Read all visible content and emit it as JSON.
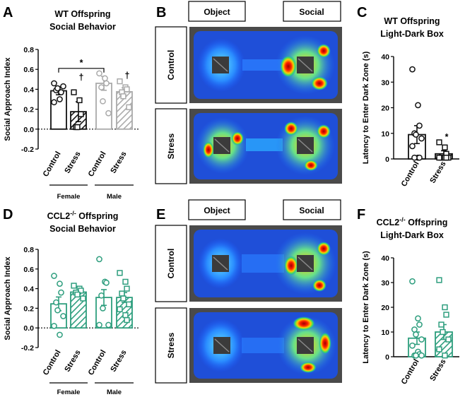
{
  "figure": {
    "panel_labels": {
      "a": "A",
      "b": "B",
      "c": "C",
      "d": "D",
      "e": "E",
      "f": "F"
    }
  },
  "heatmaps": {
    "top": {
      "left_label": "Object",
      "right_label": "Social",
      "row_labels": [
        "Control",
        "Stress"
      ]
    },
    "bottom": {
      "left_label": "Object",
      "right_label": "Social",
      "row_labels": [
        "Control",
        "Stress"
      ]
    }
  },
  "colors": {
    "wt_dark": "#111111",
    "wt_light": "#aaaaaa",
    "ko": "#2e9e7e",
    "axis": "#000000"
  },
  "chart_data": [
    {
      "id": "A",
      "type": "bar",
      "title": "WT Offspring",
      "subtitle": "Social Behavior",
      "title_sup": "",
      "ylabel": "Social Approach Index",
      "ylim": [
        -0.2,
        0.8
      ],
      "yticks": [
        -0.2,
        0.0,
        0.2,
        0.4,
        0.6,
        0.8
      ],
      "ytick_labels": [
        "-0.2",
        "0.0",
        "0.2",
        "0.4",
        "0.6",
        "0.8"
      ],
      "zero_dotted": true,
      "categories": [
        "Control",
        "Stress",
        "Control",
        "Stress"
      ],
      "groups": [
        {
          "label": "Female",
          "span": [
            0,
            1
          ]
        },
        {
          "label": "Male",
          "span": [
            2,
            3
          ]
        }
      ],
      "bars": [
        {
          "value": 0.385,
          "sem": 0.04,
          "hatched": false,
          "color_key": "wt_dark",
          "marker": "circle",
          "points": [
            0.27,
            0.3,
            0.37,
            0.39,
            0.41,
            0.43,
            0.46
          ]
        },
        {
          "value": 0.175,
          "sem": 0.1,
          "hatched": true,
          "color_key": "wt_dark",
          "marker": "square",
          "points": [
            0.37,
            0.29,
            0.15,
            0.02,
            0.02
          ]
        },
        {
          "value": 0.46,
          "sem": 0.07,
          "hatched": false,
          "color_key": "wt_light",
          "marker": "circle",
          "points": [
            0.56,
            0.51,
            0.46,
            0.42,
            0.28,
            0.16
          ]
        },
        {
          "value": 0.375,
          "sem": 0.04,
          "hatched": true,
          "color_key": "wt_light",
          "marker": "square",
          "points": [
            0.48,
            0.42,
            0.4,
            0.37,
            0.33,
            0.22
          ]
        }
      ],
      "annotations": [
        {
          "text": "*",
          "type": "bracket",
          "from": 0,
          "to": 2,
          "y": 0.61
        },
        {
          "text": "†",
          "type": "mark",
          "bar": 1,
          "y": 0.49
        },
        {
          "text": "†",
          "type": "mark",
          "bar": 3,
          "y": 0.51
        }
      ]
    },
    {
      "id": "C",
      "type": "bar",
      "title": "WT Offspring",
      "subtitle": "Light-Dark Box",
      "title_sup": "",
      "ylabel": "Latency to Enter Dark Zone (s)",
      "ylim": [
        0,
        40
      ],
      "yticks": [
        0,
        10,
        20,
        30,
        40
      ],
      "ytick_labels": [
        "0",
        "10",
        "20",
        "30",
        "40"
      ],
      "zero_dotted": false,
      "categories": [
        "Control",
        "Stress"
      ],
      "groups": [],
      "bars": [
        {
          "value": 9.5,
          "sem": 3.5,
          "hatched": false,
          "color_key": "wt_dark",
          "marker": "circle",
          "points": [
            35.0,
            21.0,
            13.0,
            10.0,
            9.5,
            8.0,
            5.0,
            0.5,
            0.5,
            0.5
          ]
        },
        {
          "value": 2.0,
          "sem": 1.2,
          "hatched": true,
          "color_key": "wt_dark",
          "marker": "square",
          "points": [
            6.5,
            4.5,
            2.0,
            0.5,
            0.5,
            0.5,
            0.5,
            0.5,
            0.5
          ]
        }
      ],
      "annotations": [
        {
          "text": "*",
          "type": "mark",
          "bar": 1,
          "y": 7.5
        }
      ]
    },
    {
      "id": "D",
      "type": "bar",
      "title": "CCL2",
      "subtitle": "Social Behavior",
      "title_sup": "-/-",
      "title_suffix": " Offspring",
      "ylabel": "Social Approach Index",
      "ylim": [
        -0.2,
        0.8
      ],
      "yticks": [
        -0.2,
        0.0,
        0.2,
        0.4,
        0.6,
        0.8
      ],
      "ytick_labels": [
        "-0.2",
        "0.0",
        "0.2",
        "0.4",
        "0.6",
        "0.8"
      ],
      "zero_dotted": true,
      "categories": [
        "Control",
        "Stress",
        "Control",
        "Stress"
      ],
      "groups": [
        {
          "label": "Female",
          "span": [
            0,
            1
          ]
        },
        {
          "label": "Male",
          "span": [
            2,
            3
          ]
        }
      ],
      "bars": [
        {
          "value": 0.245,
          "sem": 0.07,
          "hatched": false,
          "color_key": "ko",
          "marker": "circle",
          "points": [
            0.53,
            0.45,
            0.36,
            0.26,
            0.18,
            0.12,
            0.02,
            -0.07
          ]
        },
        {
          "value": 0.365,
          "sem": 0.02,
          "hatched": true,
          "color_key": "ko",
          "marker": "square",
          "points": [
            0.43,
            0.4,
            0.38,
            0.36,
            0.34,
            0.3
          ]
        },
        {
          "value": 0.31,
          "sem": 0.08,
          "hatched": false,
          "color_key": "ko",
          "marker": "circle",
          "points": [
            0.7,
            0.47,
            0.46,
            0.33,
            0.2,
            0.03,
            0.03
          ]
        },
        {
          "value": 0.31,
          "sem": 0.05,
          "hatched": true,
          "color_key": "ko",
          "marker": "square",
          "points": [
            0.56,
            0.47,
            0.4,
            0.35,
            0.3,
            0.24,
            0.19,
            0.13,
            0.08
          ]
        }
      ],
      "annotations": []
    },
    {
      "id": "F",
      "type": "bar",
      "title": "CCL2",
      "subtitle": "Light-Dark Box",
      "title_sup": "-/-",
      "title_suffix": " Offspring",
      "ylabel": "Latency to Enter Dark Zone (s)",
      "ylim": [
        0,
        40
      ],
      "yticks": [
        0,
        10,
        20,
        30,
        40
      ],
      "ytick_labels": [
        "0",
        "10",
        "20",
        "30",
        "40"
      ],
      "zero_dotted": false,
      "categories": [
        "Control",
        "Stress"
      ],
      "groups": [],
      "bars": [
        {
          "value": 7.5,
          "sem": 2.5,
          "hatched": false,
          "color_key": "ko",
          "marker": "circle",
          "points": [
            30.5,
            15.5,
            13.0,
            11.0,
            9.0,
            7.0,
            4.5,
            2.0,
            1.0,
            0.5,
            0.5,
            0.5
          ]
        },
        {
          "value": 10.0,
          "sem": 3.0,
          "hatched": true,
          "color_key": "ko",
          "marker": "square",
          "points": [
            31.0,
            20.0,
            17.0,
            13.0,
            10.0,
            7.0,
            3.0,
            0.5
          ]
        }
      ],
      "annotations": []
    }
  ]
}
